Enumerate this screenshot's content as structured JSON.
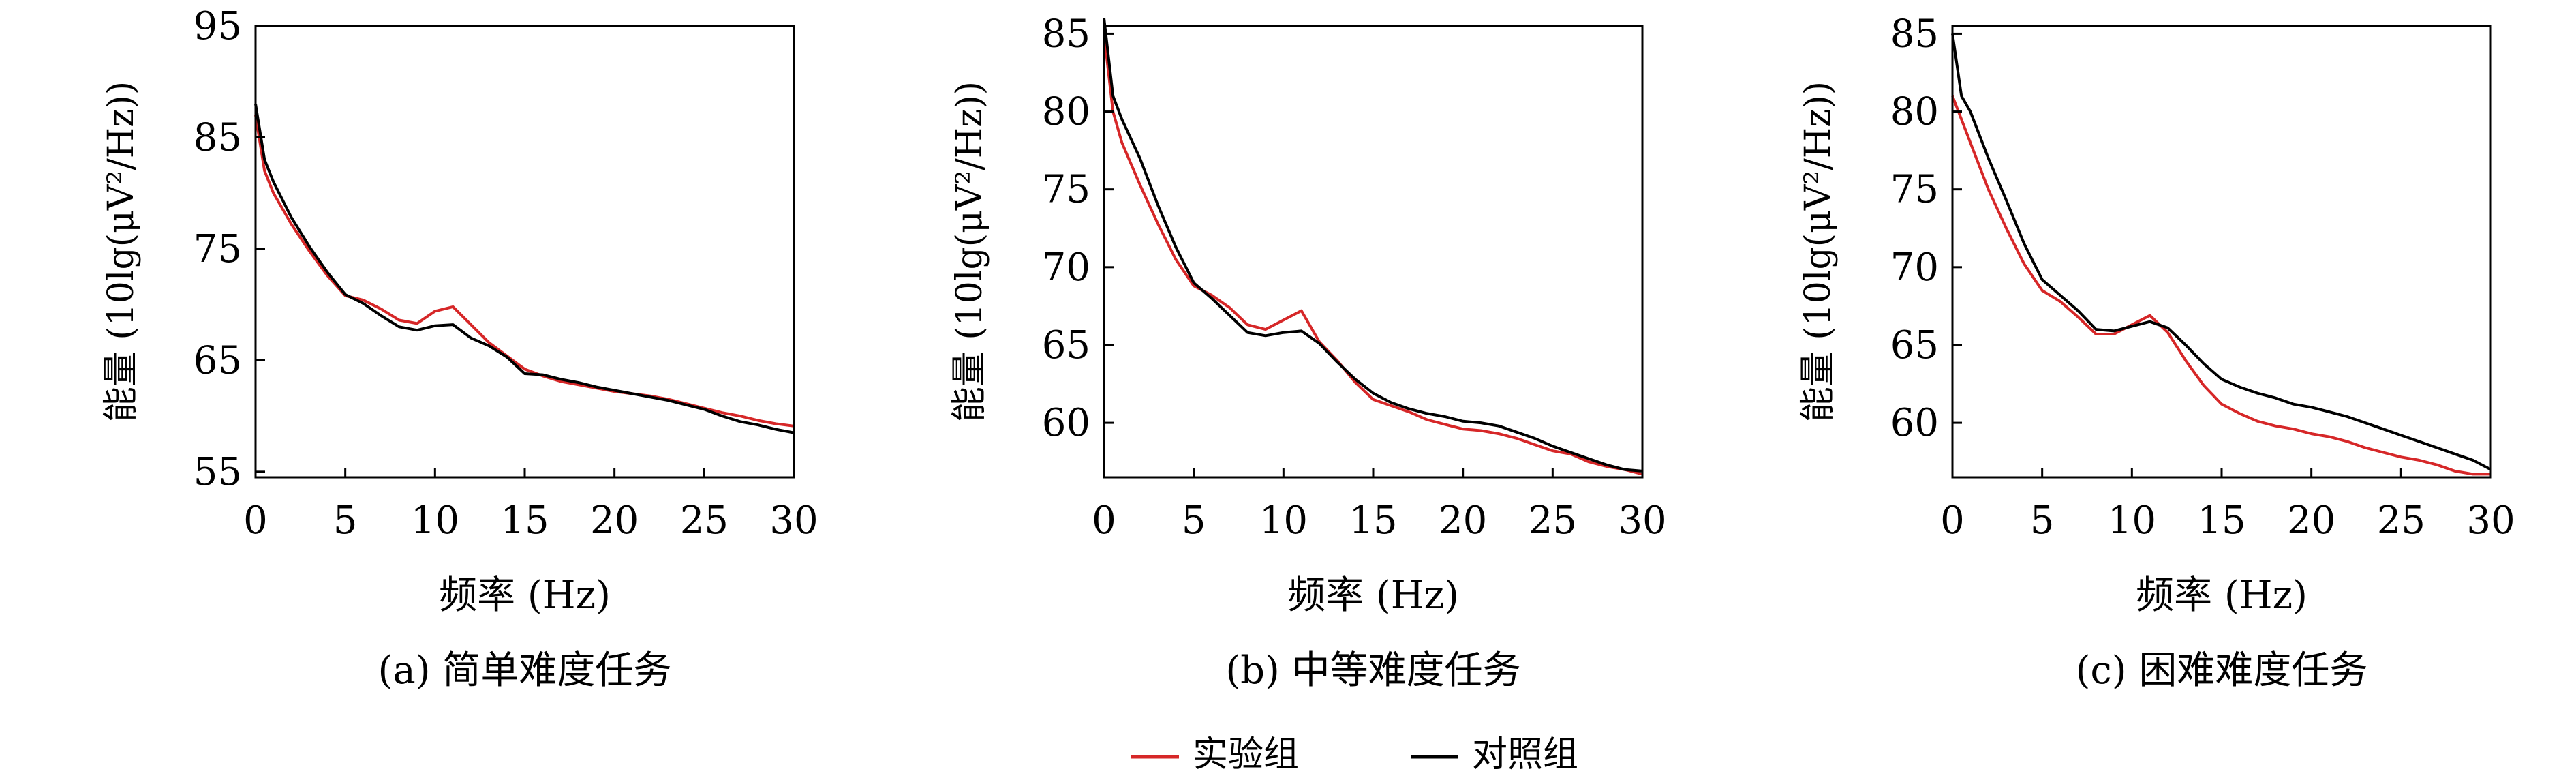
{
  "figure": {
    "legend_placement": "bottom-center",
    "colors": {
      "experimental": "#d62728",
      "control": "#000000"
    }
  },
  "legend": {
    "items": [
      {
        "label": "实验组",
        "color": "#d62728"
      },
      {
        "label": "对照组",
        "color": "#000000"
      }
    ]
  },
  "chart_data": [
    {
      "type": "line",
      "caption": "(a) 简单难度任务",
      "xlabel": "频率 (Hz)",
      "ylabel": "能量 (10lg(μV²/Hz))",
      "xlim": [
        0,
        30
      ],
      "ylim": [
        54.5,
        95
      ],
      "xticks": [
        0,
        5,
        10,
        15,
        20,
        25,
        30
      ],
      "yticks": [
        55,
        65,
        75,
        85,
        95
      ],
      "grid": false,
      "series": [
        {
          "name": "实验组",
          "color": "#d62728",
          "x": [
            0,
            0.5,
            1,
            2,
            3,
            4,
            5,
            6,
            7,
            8,
            9,
            10,
            11,
            12,
            13,
            14,
            15,
            16,
            17,
            18,
            19,
            20,
            21,
            22,
            23,
            24,
            25,
            26,
            27,
            28,
            29,
            30
          ],
          "y": [
            87,
            82,
            80,
            77.2,
            74.8,
            72.6,
            70.8,
            70.4,
            69.6,
            68.6,
            68.3,
            69.4,
            69.8,
            68.2,
            66.6,
            65.4,
            64.2,
            63.6,
            63.1,
            62.8,
            62.5,
            62.2,
            62.0,
            61.8,
            61.5,
            61.1,
            60.7,
            60.3,
            60.0,
            59.6,
            59.3,
            59.1
          ]
        },
        {
          "name": "对照组",
          "color": "#000000",
          "x": [
            0,
            0.5,
            1,
            2,
            3,
            4,
            5,
            6,
            7,
            8,
            9,
            10,
            11,
            12,
            13,
            14,
            15,
            16,
            17,
            18,
            19,
            20,
            21,
            22,
            23,
            24,
            25,
            26,
            27,
            28,
            29,
            30
          ],
          "y": [
            88,
            83,
            81,
            77.8,
            75.2,
            72.9,
            70.9,
            70.1,
            69.0,
            68.0,
            67.7,
            68.1,
            68.2,
            67.0,
            66.3,
            65.3,
            63.8,
            63.7,
            63.3,
            63.0,
            62.6,
            62.3,
            62.0,
            61.7,
            61.4,
            61.0,
            60.6,
            60.0,
            59.5,
            59.2,
            58.8,
            58.5
          ]
        }
      ]
    },
    {
      "type": "line",
      "caption": "(b) 中等难度任务",
      "xlabel": "频率 (Hz)",
      "ylabel": "能量 (10lg(μV²/Hz))",
      "xlim": [
        0,
        30
      ],
      "ylim": [
        56.5,
        85.5
      ],
      "xticks": [
        0,
        5,
        10,
        15,
        20,
        25,
        30
      ],
      "yticks": [
        60,
        65,
        70,
        75,
        80,
        85
      ],
      "grid": false,
      "series": [
        {
          "name": "实验组",
          "color": "#d62728",
          "x": [
            0,
            0.5,
            1,
            2,
            3,
            4,
            5,
            6,
            7,
            8,
            9,
            10,
            11,
            12,
            13,
            14,
            15,
            16,
            17,
            18,
            19,
            20,
            21,
            22,
            23,
            24,
            25,
            26,
            27,
            28,
            29,
            30
          ],
          "y": [
            85,
            80,
            78,
            75.3,
            72.8,
            70.5,
            68.8,
            68.2,
            67.4,
            66.3,
            66.0,
            66.6,
            67.2,
            65.2,
            64.0,
            62.6,
            61.5,
            61.1,
            60.7,
            60.2,
            59.9,
            59.6,
            59.5,
            59.3,
            59.0,
            58.6,
            58.2,
            58.0,
            57.5,
            57.2,
            57.0,
            56.7
          ]
        },
        {
          "name": "对照组",
          "color": "#000000",
          "x": [
            0,
            0.5,
            1,
            2,
            3,
            4,
            5,
            6,
            7,
            8,
            9,
            10,
            11,
            12,
            13,
            14,
            15,
            16,
            17,
            18,
            19,
            20,
            21,
            22,
            23,
            24,
            25,
            26,
            27,
            28,
            29,
            30
          ],
          "y": [
            86,
            81,
            79.5,
            77.0,
            74.0,
            71.3,
            69.0,
            68.0,
            66.9,
            65.8,
            65.6,
            65.8,
            65.9,
            65.1,
            63.9,
            62.8,
            61.9,
            61.3,
            60.9,
            60.6,
            60.4,
            60.1,
            60.0,
            59.8,
            59.4,
            59.0,
            58.5,
            58.1,
            57.7,
            57.3,
            57.0,
            56.9
          ]
        }
      ]
    },
    {
      "type": "line",
      "caption": "(c) 困难难度任务",
      "xlabel": "频率 (Hz)",
      "ylabel": "能量 (10lg(μV²/Hz))",
      "xlim": [
        0,
        30
      ],
      "ylim": [
        56.5,
        85.5
      ],
      "xticks": [
        0,
        5,
        10,
        15,
        20,
        25,
        30
      ],
      "yticks": [
        60,
        65,
        70,
        75,
        80,
        85
      ],
      "grid": false,
      "series": [
        {
          "name": "实验组",
          "color": "#d62728",
          "x": [
            0,
            0.5,
            1,
            2,
            3,
            4,
            5,
            6,
            7,
            8,
            9,
            10,
            11,
            12,
            13,
            14,
            15,
            16,
            17,
            18,
            19,
            20,
            21,
            22,
            23,
            24,
            25,
            26,
            27,
            28,
            29,
            30
          ],
          "y": [
            81,
            79.5,
            78,
            75.0,
            72.5,
            70.2,
            68.5,
            67.8,
            66.8,
            65.7,
            65.7,
            66.3,
            66.9,
            65.8,
            64.0,
            62.4,
            61.2,
            60.6,
            60.1,
            59.8,
            59.6,
            59.3,
            59.1,
            58.8,
            58.4,
            58.1,
            57.8,
            57.6,
            57.3,
            56.9,
            56.7,
            56.7
          ]
        },
        {
          "name": "对照组",
          "color": "#000000",
          "x": [
            0,
            0.5,
            1,
            2,
            3,
            4,
            5,
            6,
            7,
            8,
            9,
            10,
            11,
            12,
            13,
            14,
            15,
            16,
            17,
            18,
            19,
            20,
            21,
            22,
            23,
            24,
            25,
            26,
            27,
            28,
            29,
            30
          ],
          "y": [
            85,
            81,
            80,
            77.0,
            74.3,
            71.5,
            69.2,
            68.2,
            67.2,
            66.0,
            65.9,
            66.2,
            66.5,
            66.1,
            65.0,
            63.8,
            62.8,
            62.3,
            61.9,
            61.6,
            61.2,
            61.0,
            60.7,
            60.4,
            60.0,
            59.6,
            59.2,
            58.8,
            58.4,
            58.0,
            57.6,
            57.0
          ]
        }
      ]
    }
  ]
}
